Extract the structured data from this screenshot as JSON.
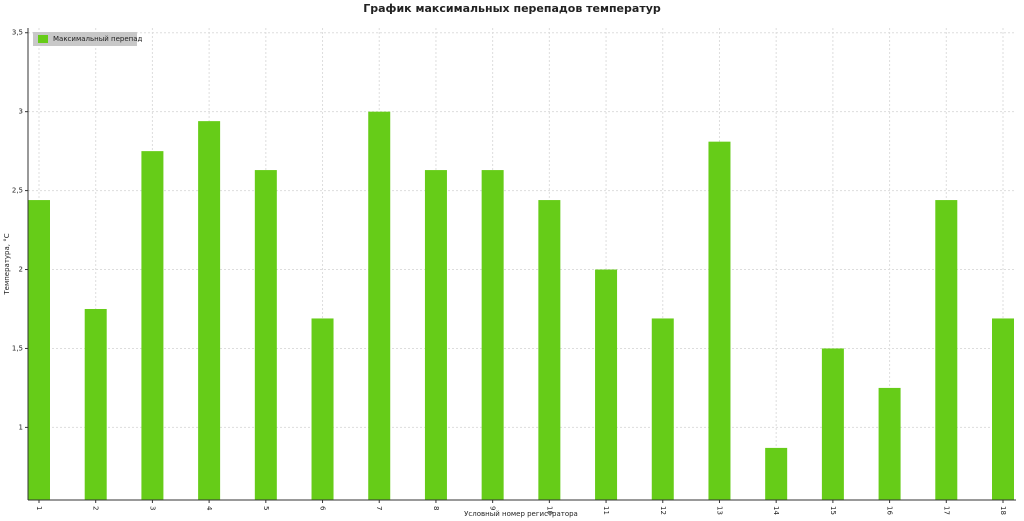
{
  "chart_data": {
    "type": "bar",
    "title": "График максимальных перепадов температур",
    "x_label": "Условный номер регистратора",
    "y_label": "Температура, °С",
    "categories": [
      "1",
      "2",
      "3",
      "4",
      "5",
      "6",
      "7",
      "8",
      "9",
      "10",
      "11",
      "12",
      "13",
      "14",
      "15",
      "16",
      "17",
      "18"
    ],
    "series": [
      {
        "name": "Максимальный перепад",
        "color": "#66cc18",
        "values": [
          2.44,
          1.75,
          2.75,
          2.94,
          2.63,
          1.69,
          3.0,
          2.63,
          2.63,
          2.44,
          2.0,
          1.69,
          2.81,
          0.87,
          1.5,
          1.25,
          2.44,
          1.69
        ]
      }
    ],
    "ylim": [
      0.54,
      3.53
    ],
    "yticks": [
      {
        "value": 1,
        "label": "1"
      },
      {
        "value": 1.5,
        "label": "1,5"
      },
      {
        "value": 2,
        "label": "2"
      },
      {
        "value": 2.5,
        "label": "2,5"
      },
      {
        "value": 3,
        "label": "3"
      },
      {
        "value": 3.5,
        "label": "3,5"
      }
    ],
    "grid": true,
    "legend": "top-left"
  }
}
